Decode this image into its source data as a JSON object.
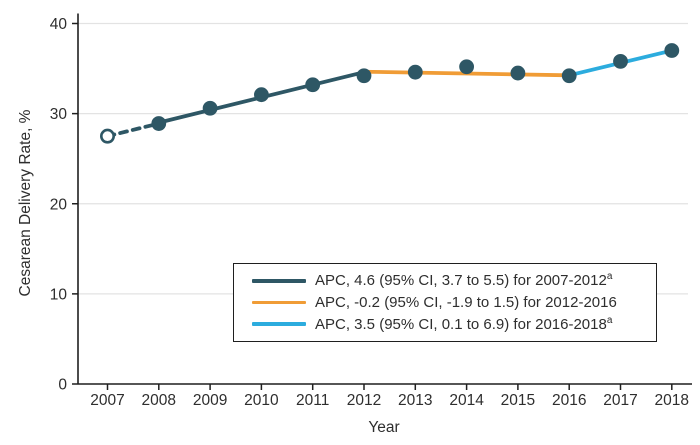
{
  "figure": {
    "background": "#ffffff"
  },
  "chart_data": {
    "type": "line",
    "title": "",
    "xlabel": "Year",
    "ylabel": "Cesarean Delivery Rate, %",
    "ylim": [
      0,
      40
    ],
    "yticks": [
      0,
      10,
      20,
      30,
      40
    ],
    "xticks": [
      2007,
      2008,
      2009,
      2010,
      2011,
      2012,
      2013,
      2014,
      2015,
      2016,
      2017,
      2018
    ],
    "grid": "horizontal",
    "legend_position": "inside-bottom-center",
    "points": [
      {
        "year": 2007,
        "value": 27.5,
        "marker": "open"
      },
      {
        "year": 2008,
        "value": 28.9,
        "marker": "filled"
      },
      {
        "year": 2009,
        "value": 30.6,
        "marker": "filled"
      },
      {
        "year": 2010,
        "value": 32.1,
        "marker": "filled"
      },
      {
        "year": 2011,
        "value": 33.2,
        "marker": "filled"
      },
      {
        "year": 2012,
        "value": 34.2,
        "marker": "filled"
      },
      {
        "year": 2013,
        "value": 34.6,
        "marker": "filled"
      },
      {
        "year": 2014,
        "value": 35.2,
        "marker": "filled"
      },
      {
        "year": 2015,
        "value": 34.5,
        "marker": "filled"
      },
      {
        "year": 2016,
        "value": 34.2,
        "marker": "filled"
      },
      {
        "year": 2017,
        "value": 35.8,
        "marker": "filled"
      },
      {
        "year": 2018,
        "value": 37.0,
        "marker": "filled"
      }
    ],
    "segments": [
      {
        "name": "observed-dashed-2007-2008",
        "color_key": "slate",
        "style": "dashed",
        "from": {
          "year": 2007,
          "value": 27.5
        },
        "to": {
          "year": 2008,
          "value": 28.9
        }
      },
      {
        "name": "apc-trend-2008-2012",
        "color_key": "slate",
        "style": "solid",
        "from": {
          "year": 2008,
          "value": 29.0
        },
        "to": {
          "year": 2012,
          "value": 34.6
        }
      },
      {
        "name": "apc-trend-2012-2016",
        "color_key": "orange",
        "style": "solid",
        "from": {
          "year": 2012,
          "value": 34.65
        },
        "to": {
          "year": 2016,
          "value": 34.25
        }
      },
      {
        "name": "apc-trend-2016-2018",
        "color_key": "blue",
        "style": "solid",
        "from": {
          "year": 2016,
          "value": 34.25
        },
        "to": {
          "year": 2018,
          "value": 37.0
        }
      }
    ],
    "legend": {
      "entries": [
        {
          "color_key": "slate",
          "label": "APC, 4.6 (95% CI, 3.7 to 5.5) for 2007-2012",
          "superscript": "a"
        },
        {
          "color_key": "orange",
          "label": "APC, -0.2 (95% CI, -1.9 to 1.5) for 2012-2016",
          "superscript": ""
        },
        {
          "color_key": "blue",
          "label": "APC, 3.5 (95% CI, 0.1 to 6.9) for 2016-2018",
          "superscript": "a"
        }
      ]
    },
    "colors": {
      "slate": "#2E5765",
      "orange": "#F09C36",
      "blue": "#2CACDE",
      "marker": "#2E5765",
      "grid": "#E3E3E3",
      "axis": "#1F1F1F",
      "text": "#2E2E2E"
    }
  }
}
